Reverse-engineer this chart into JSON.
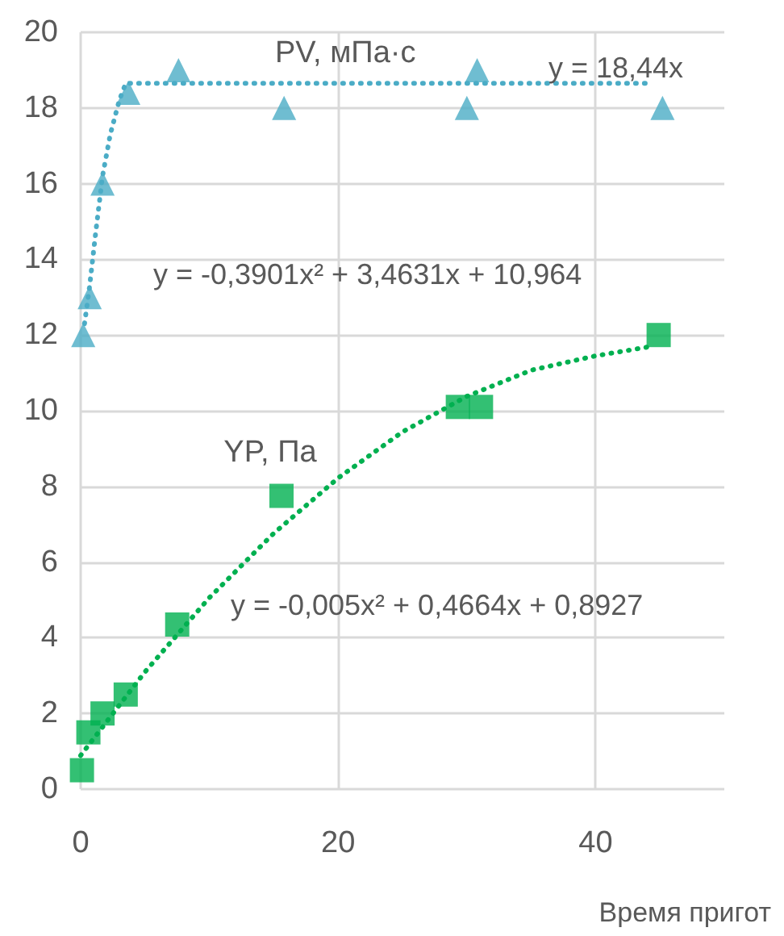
{
  "chart_data": {
    "type": "scatter",
    "xlabel": "Время пригот",
    "xlim": [
      0,
      50
    ],
    "xticks": [
      0,
      20,
      40
    ],
    "ylim": [
      0,
      20
    ],
    "yticks": [
      0,
      2,
      4,
      6,
      8,
      10,
      12,
      14,
      16,
      18,
      20
    ],
    "grid": true,
    "legend": false,
    "series": [
      {
        "name": "PV, мПа·с",
        "color": "#4bacc6",
        "marker": "triangle",
        "x": [
          0.2,
          0.7,
          1.7,
          3.7,
          7.6,
          15.8,
          30,
          30.8,
          45.2
        ],
        "values": [
          12,
          13,
          16,
          18.4,
          19,
          18,
          18,
          19,
          18
        ]
      },
      {
        "name": "YP, Па",
        "color": "#00b050",
        "marker": "square",
        "x": [
          0.1,
          0.6,
          1.7,
          3.5,
          7.5,
          15.6,
          29.3,
          31.1,
          44.9
        ],
        "values": [
          0.5,
          1.5,
          2,
          2.5,
          4.35,
          7.75,
          10.1,
          10.1,
          12
        ]
      },
      {
        "type": "line",
        "color": "#4bacc6",
        "marker": "none",
        "line_style": "dotted",
        "x": [
          0.3,
          0.7,
          1.2,
          1.7,
          2.3,
          3,
          3.5,
          44
        ],
        "values": [
          12.3,
          13.3,
          14.8,
          16.2,
          17.3,
          18.2,
          18.65,
          18.65
        ]
      },
      {
        "type": "line",
        "color": "#00b050",
        "marker": "none",
        "line_style": "dotted",
        "x": [
          0,
          5,
          10,
          15,
          20,
          25,
          30,
          35,
          40,
          44
        ],
        "values": [
          0.89,
          3.1,
          5.06,
          6.76,
          8.22,
          9.44,
          10.38,
          11.07,
          11.45,
          11.68
        ]
      }
    ],
    "annotations": [
      "y = 18,44x",
      "y = -0,3901x² + 3,4631x + 10,964",
      "y = -0,005x² + 0,4664x + 0,8927"
    ]
  }
}
